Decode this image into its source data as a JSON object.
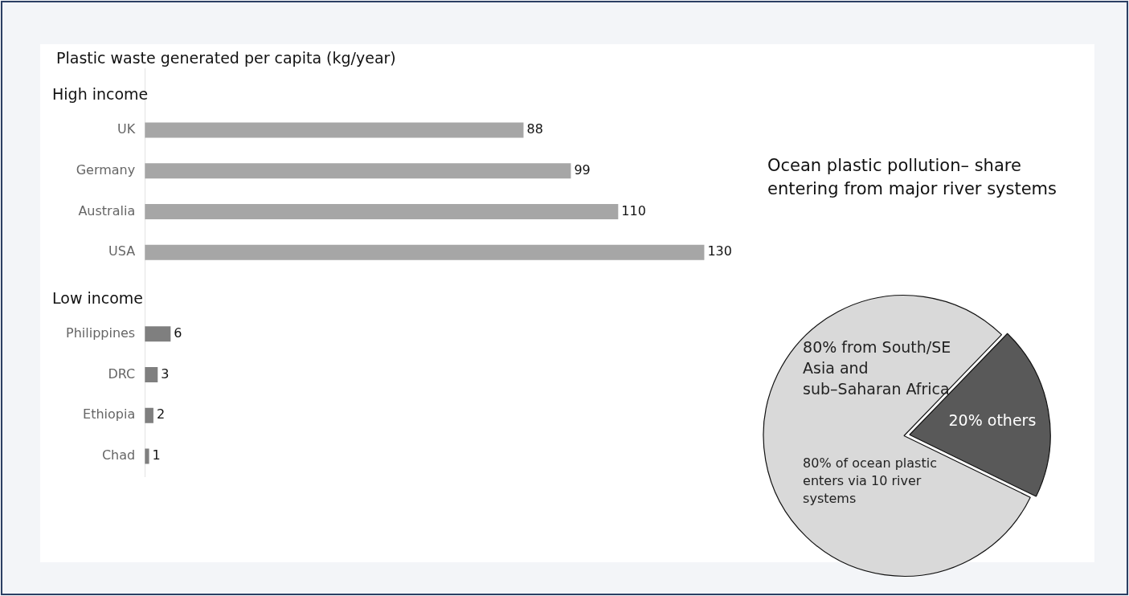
{
  "chart_data": [
    {
      "type": "bar",
      "orientation": "horizontal",
      "stacked": true,
      "title": "Plastic waste generated per capita (kg/year)",
      "categories": [
        null,
        "UK",
        "Germany",
        "Australia",
        "USA",
        null,
        "Philippines",
        "DRC",
        "Ethiopia",
        "Chad"
      ],
      "series": [
        {
          "name": "High income",
          "color": "#a6a6a6",
          "values": [
            null,
            88,
            99,
            110,
            130,
            null,
            null,
            null,
            null,
            null
          ]
        },
        {
          "name": "Low income",
          "color": "#7f7f7f",
          "values": [
            null,
            null,
            null,
            null,
            null,
            null,
            6,
            3,
            2,
            1
          ]
        }
      ],
      "tick_labels": "y",
      "grid": false,
      "data_labels": true
    },
    {
      "type": "pie",
      "title": "Ocean plastic pollution– share entering from major river systems",
      "categories": [
        "80% from South/SE Asia and sub–Saharan Africa",
        "20% others"
      ],
      "values": [
        80,
        20
      ],
      "colors": [
        "#d9d9d9",
        "#595959"
      ],
      "annotations": [
        "80% of ocean plastic enters via 10 river systems"
      ]
    }
  ]
}
